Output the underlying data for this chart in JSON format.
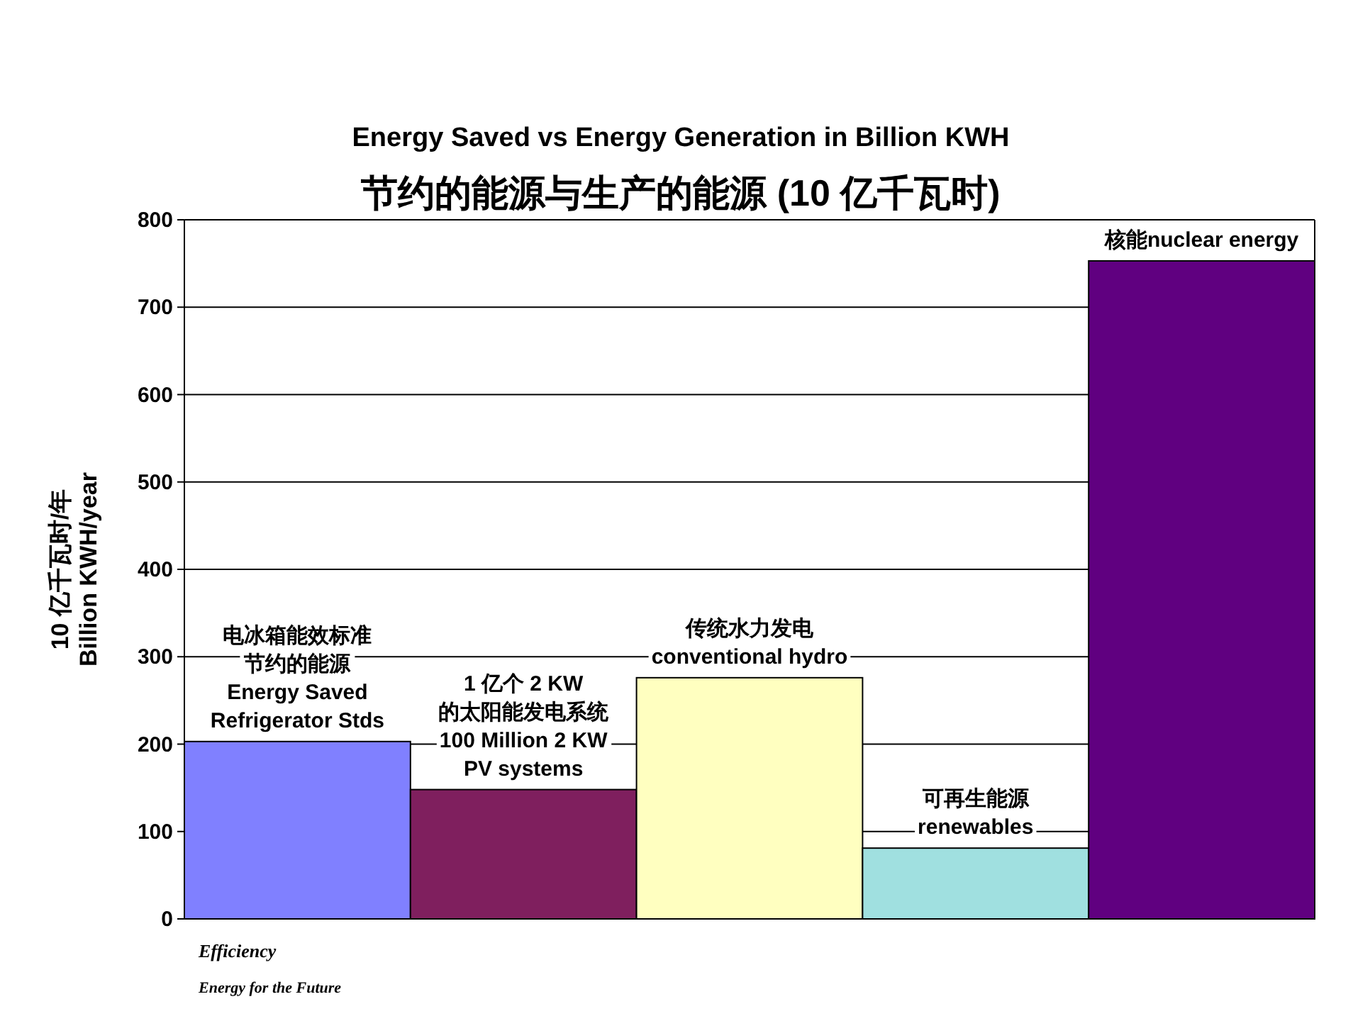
{
  "chart_data": {
    "type": "bar",
    "title": "Energy Saved vs Energy Generation in Billion KWH",
    "subtitle": "节约的能源与生产的能源 (10 亿千瓦时)",
    "ylabel": "10 亿千瓦时/年\nBillion KWH/year",
    "categories": [
      "电冰箱能效标准节约的能源\nEnergy Saved\nRefrigerator Stds",
      "1 亿个 2 KW\n的太阳能发电系统\n100 Million 2 KW\nPV systems",
      "传统水力发电\nconventional hydro",
      "可再生能源\nrenewables",
      "核能nuclear energy"
    ],
    "values": [
      203,
      148,
      276,
      81,
      753
    ],
    "colors": [
      "#8080ff",
      "#7f1f5e",
      "#ffffc0",
      "#a0e0e0",
      "#600080"
    ],
    "ylim": [
      0,
      800
    ],
    "yticks": [
      0,
      100,
      200,
      300,
      400,
      500,
      600,
      700,
      800
    ],
    "grid": "y",
    "legend": false,
    "annotations": [
      "Efficiency",
      "Energy for the Future"
    ]
  }
}
